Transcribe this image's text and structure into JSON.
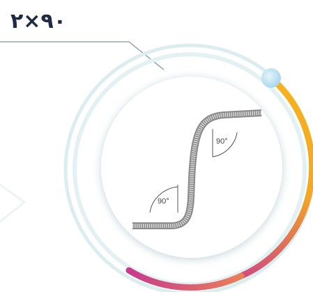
{
  "title": "۲×۹۰",
  "angle_labels": [
    "90°",
    "90°"
  ]
}
